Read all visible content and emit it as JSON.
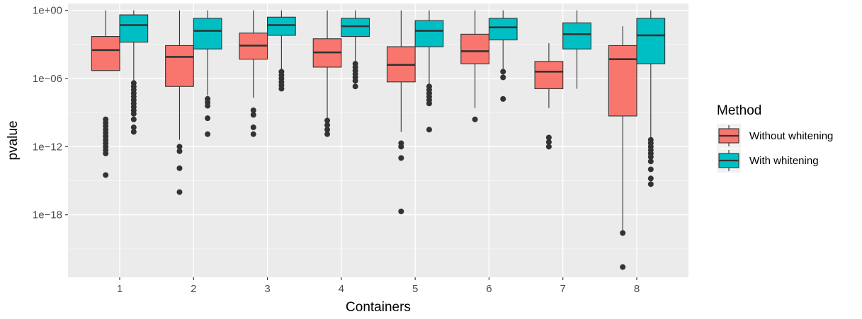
{
  "chart_data": {
    "type": "boxplot",
    "xlabel": "Containers",
    "ylabel": "pvalue",
    "categories": [
      "1",
      "2",
      "3",
      "4",
      "5",
      "6",
      "7",
      "8"
    ],
    "y_scale": "log10",
    "ylim_log10": [
      -23.5,
      0.6
    ],
    "y_ticks": [
      {
        "log10": 0,
        "label": "1e+00"
      },
      {
        "log10": -6,
        "label": "1e−06"
      },
      {
        "log10": -12,
        "label": "1e−12"
      },
      {
        "log10": -18,
        "label": "1e−18"
      }
    ],
    "legend": {
      "title": "Method",
      "position": "right",
      "items": [
        {
          "label": "Without whitening",
          "color": "#F8766D"
        },
        {
          "label": "With whitening",
          "color": "#00BFC4"
        }
      ]
    },
    "series": [
      {
        "name": "Without whitening",
        "color": "#F8766D",
        "boxes": [
          {
            "lower_whisker": -5.3,
            "q1": -5.3,
            "median": -3.5,
            "q3": -2.3,
            "upper_whisker": 0,
            "outliers": [
              -9.6,
              -9.9,
              -10.2,
              -10.5,
              -10.8,
              -11.1,
              -11.4,
              -11.7,
              -12.0,
              -12.3,
              -12.6,
              -14.5
            ]
          },
          {
            "lower_whisker": -11.4,
            "q1": -6.7,
            "median": -4.1,
            "q3": -3.1,
            "upper_whisker": 0,
            "outliers": [
              -12.0,
              -12.4,
              -13.9,
              -16.0
            ]
          },
          {
            "lower_whisker": -7.7,
            "q1": -4.3,
            "median": -3.1,
            "q3": -2.0,
            "upper_whisker": 0,
            "outliers": [
              -8.8,
              -9.2,
              -10.3,
              -10.9
            ]
          },
          {
            "lower_whisker": -9.5,
            "q1": -5.0,
            "median": -3.7,
            "q3": -2.5,
            "upper_whisker": 0,
            "outliers": [
              -9.7,
              -10.1,
              -10.5,
              -10.9
            ]
          },
          {
            "lower_whisker": -10.7,
            "q1": -6.3,
            "median": -4.8,
            "q3": -3.2,
            "upper_whisker": 0,
            "outliers": [
              -11.7,
              -12.0,
              -13.0,
              -17.7
            ]
          },
          {
            "lower_whisker": -8.6,
            "q1": -4.7,
            "median": -3.6,
            "q3": -2.1,
            "upper_whisker": 0,
            "outliers": [
              -9.6
            ]
          },
          {
            "lower_whisker": -8.6,
            "q1": -6.9,
            "median": -5.4,
            "q3": -4.5,
            "upper_whisker": -2.9,
            "outliers": [
              -11.2,
              -11.6,
              -12.0
            ]
          },
          {
            "lower_whisker": -19.5,
            "q1": -9.3,
            "median": -4.3,
            "q3": -3.1,
            "upper_whisker": -1.4,
            "outliers": [
              -19.6,
              -22.6
            ]
          }
        ]
      },
      {
        "name": "With whitening",
        "color": "#00BFC4",
        "boxes": [
          {
            "lower_whisker": -6.3,
            "q1": -2.8,
            "median": -1.3,
            "q3": -0.4,
            "upper_whisker": 0,
            "outliers": [
              -6.4,
              -6.7,
              -7.0,
              -7.3,
              -7.6,
              -7.9,
              -8.2,
              -8.5,
              -8.8,
              -9.1,
              -9.6,
              -10.3,
              -10.7
            ]
          },
          {
            "lower_whisker": -7.5,
            "q1": -3.4,
            "median": -1.8,
            "q3": -0.7,
            "upper_whisker": 0,
            "outliers": [
              -7.8,
              -8.1,
              -8.4,
              -9.5,
              -10.9
            ]
          },
          {
            "lower_whisker": -5.4,
            "q1": -2.2,
            "median": -1.3,
            "q3": -0.6,
            "upper_whisker": 0,
            "outliers": [
              -5.4,
              -5.7,
              -6.0,
              -6.3,
              -6.6,
              -6.9
            ]
          },
          {
            "lower_whisker": -4.7,
            "q1": -2.3,
            "median": -1.4,
            "q3": -0.7,
            "upper_whisker": 0,
            "outliers": [
              -4.7,
              -5.0,
              -5.3,
              -5.6,
              -5.9,
              -6.2,
              -6.7
            ]
          },
          {
            "lower_whisker": -6.5,
            "q1": -3.2,
            "median": -1.8,
            "q3": -0.9,
            "upper_whisker": 0,
            "outliers": [
              -6.7,
              -7.0,
              -7.3,
              -7.6,
              -7.9,
              -8.2,
              -10.5
            ]
          },
          {
            "lower_whisker": -5.3,
            "q1": -2.6,
            "median": -1.5,
            "q3": -0.7,
            "upper_whisker": 0,
            "outliers": [
              -5.4,
              -5.9,
              -7.8
            ]
          },
          {
            "lower_whisker": -6.9,
            "q1": -3.4,
            "median": -2.1,
            "q3": -1.1,
            "upper_whisker": 0,
            "outliers": []
          },
          {
            "lower_whisker": -11.3,
            "q1": -4.7,
            "median": -2.2,
            "q3": -0.7,
            "upper_whisker": 0,
            "outliers": [
              -11.4,
              -11.7,
              -12.0,
              -12.3,
              -12.6,
              -12.9,
              -13.3,
              -14.0,
              -14.8,
              -15.3
            ]
          }
        ]
      }
    ]
  }
}
